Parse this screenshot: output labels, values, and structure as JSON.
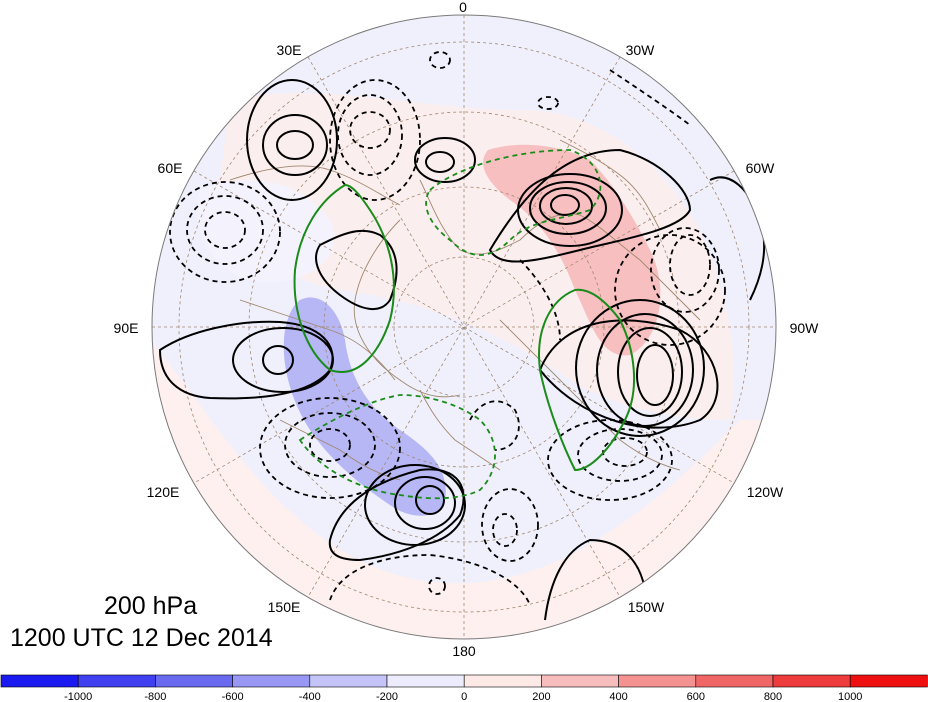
{
  "map": {
    "projection": "north polar stereographic",
    "center": "North Pole",
    "lon_labels": [
      "0",
      "30W",
      "60W",
      "90W",
      "120W",
      "150W",
      "180",
      "150E",
      "120E",
      "90E",
      "60E",
      "30E"
    ],
    "legend_placement": "bottom",
    "shading_variable_range": [
      -1000,
      1000
    ]
  },
  "title": {
    "level": "200 hPa",
    "time": "1200 UTC 12 Dec 2014"
  },
  "colorbar": {
    "labels": [
      "-1000",
      "-800",
      "-600",
      "-400",
      "-200",
      "0",
      "200",
      "400",
      "600",
      "800",
      "1000"
    ],
    "colors": [
      "#1a1af0",
      "#4040f0",
      "#6a6af0",
      "#9898f4",
      "#c4c4f8",
      "#ececfc",
      "#fde9e6",
      "#f7bcbc",
      "#f49191",
      "#f06666",
      "#ee3b3b",
      "#ee1010"
    ]
  },
  "colors": {
    "positive_contour": "#000000",
    "negative_contour": "#000000",
    "green_contour": "#1a8c1a",
    "coastline": "#a08870",
    "grid": "#a08870"
  }
}
